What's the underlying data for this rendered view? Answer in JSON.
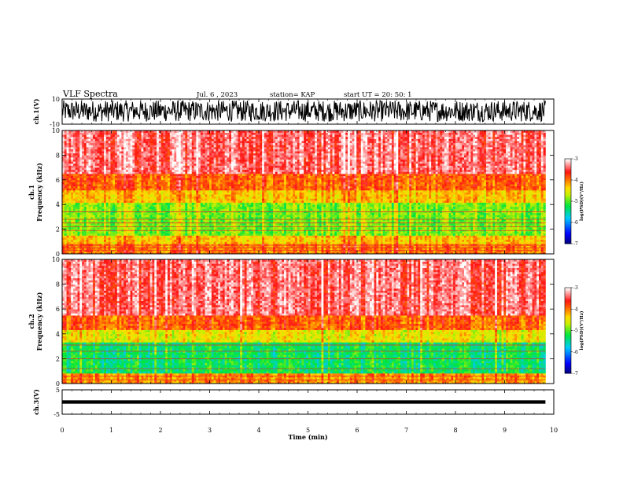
{
  "header": {
    "title": "VLF Spectra",
    "date": "Jul. 6 , 2023",
    "station": "station= KAP",
    "start": "start UT =  20: 50: 1"
  },
  "chart_data": [
    {
      "type": "line",
      "name": "ch.1 waveform",
      "ylabel": "ch.1(V)",
      "ylim": [
        -10,
        10
      ],
      "yticks": [
        "10",
        "-10"
      ],
      "xlim": [
        0,
        10
      ],
      "signal": {
        "center": 0,
        "amplitude_range": [
          -8,
          9
        ],
        "duration_min": 9.83
      }
    },
    {
      "type": "heatmap",
      "name": "ch.1 spectrogram",
      "ylabel": "ch.1\nFrequency (kHz)",
      "ylim": [
        0,
        10
      ],
      "yticks": [
        "0",
        "2",
        "4",
        "6",
        "8",
        "10"
      ],
      "xlim": [
        0,
        10
      ],
      "duration_min": 9.83,
      "colorbar": {
        "label": "log(PSD)(V²/Hz)",
        "range": [
          -7,
          -3
        ],
        "ticks": [
          "-3",
          "-4",
          "-5",
          "-6",
          "-7"
        ]
      },
      "bands": [
        {
          "from_khz": 0,
          "to_khz": 0.8,
          "level": -4.0
        },
        {
          "from_khz": 0.8,
          "to_khz": 1.5,
          "level": -4.3
        },
        {
          "from_khz": 1.5,
          "to_khz": 4.2,
          "level": -4.9
        },
        {
          "from_khz": 4.2,
          "to_khz": 5.2,
          "level": -4.3
        },
        {
          "from_khz": 5.2,
          "to_khz": 6.5,
          "level": -3.9
        },
        {
          "from_khz": 6.5,
          "to_khz": 10,
          "level": -3.4
        }
      ],
      "lines_khz": [
        0.3,
        0.5,
        0.7,
        1.9,
        2.2,
        2.5,
        2.8,
        3.4
      ]
    },
    {
      "type": "heatmap",
      "name": "ch.2 spectrogram",
      "ylabel": "ch.2\nFrequency (kHz)",
      "ylim": [
        0,
        10
      ],
      "yticks": [
        "0",
        "2",
        "4",
        "6",
        "8",
        "10"
      ],
      "xlim": [
        0,
        10
      ],
      "duration_min": 9.83,
      "colorbar": {
        "label": "log(PSD)(V²/Hz)",
        "range": [
          -7,
          -3
        ],
        "ticks": [
          "-3",
          "-4",
          "-5",
          "-6",
          "-7"
        ]
      },
      "bands": [
        {
          "from_khz": 0,
          "to_khz": 0.8,
          "level": -4.1
        },
        {
          "from_khz": 0.8,
          "to_khz": 3.4,
          "level": -5.3
        },
        {
          "from_khz": 3.4,
          "to_khz": 4.3,
          "level": -4.5
        },
        {
          "from_khz": 4.3,
          "to_khz": 5.5,
          "level": -3.9
        },
        {
          "from_khz": 5.5,
          "to_khz": 10,
          "level": -3.4
        }
      ],
      "lines_khz": [
        0.3,
        0.6,
        1.2,
        2.0,
        2.6,
        3.1
      ]
    },
    {
      "type": "line",
      "name": "ch.3 waveform",
      "ylabel": "ch.3(V)",
      "ylim": [
        -5,
        5
      ],
      "yticks": [
        "5",
        "-5"
      ],
      "xlim": [
        0,
        10
      ],
      "xticks": [
        "0",
        "1",
        "2",
        "3",
        "4",
        "5",
        "6",
        "7",
        "8",
        "9",
        "10"
      ],
      "xlabel": "Time (min)",
      "signal": {
        "center": 0,
        "amplitude_range": [
          -0.7,
          0.7
        ],
        "duration_min": 9.83
      }
    }
  ]
}
